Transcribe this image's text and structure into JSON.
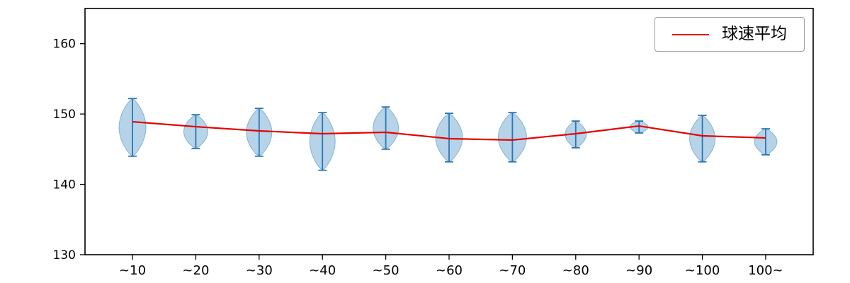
{
  "chart_data": {
    "type": "violin",
    "title": "",
    "xlabel": "",
    "ylabel": "",
    "categories": [
      "~10",
      "~20",
      "~30",
      "~40",
      "~50",
      "~60",
      "~70",
      "~80",
      "~90",
      "~100",
      "100~"
    ],
    "yticks": [
      130,
      140,
      150,
      160
    ],
    "ylim": [
      130,
      165
    ],
    "grid": false,
    "legend": {
      "position": "upper right",
      "entries": [
        "球速平均"
      ]
    },
    "series": [
      {
        "name": "球速平均",
        "type": "line",
        "color": "#e60000",
        "values": [
          148.9,
          148.2,
          147.6,
          147.2,
          147.4,
          146.5,
          146.3,
          147.2,
          148.3,
          146.9,
          146.6
        ]
      }
    ],
    "violins": [
      {
        "label": "~10",
        "min": 144.0,
        "max": 152.2,
        "mean": 148.9,
        "half_width": 19
      },
      {
        "label": "~20",
        "min": 145.1,
        "max": 149.9,
        "mean": 148.2,
        "half_width": 17
      },
      {
        "label": "~30",
        "min": 144.0,
        "max": 150.8,
        "mean": 147.6,
        "half_width": 18
      },
      {
        "label": "~40",
        "min": 142.0,
        "max": 150.2,
        "mean": 147.2,
        "half_width": 18
      },
      {
        "label": "~50",
        "min": 145.0,
        "max": 151.0,
        "mean": 147.4,
        "half_width": 18
      },
      {
        "label": "~60",
        "min": 143.2,
        "max": 150.1,
        "mean": 146.5,
        "half_width": 19
      },
      {
        "label": "~70",
        "min": 143.2,
        "max": 150.2,
        "mean": 146.3,
        "half_width": 20
      },
      {
        "label": "~80",
        "min": 145.2,
        "max": 149.0,
        "mean": 147.2,
        "half_width": 15
      },
      {
        "label": "~90",
        "min": 147.3,
        "max": 149.0,
        "mean": 148.3,
        "half_width": 13
      },
      {
        "label": "~100",
        "min": 143.2,
        "max": 149.8,
        "mean": 146.9,
        "half_width": 18
      },
      {
        "label": "100~",
        "min": 144.2,
        "max": 147.9,
        "mean": 146.6,
        "half_width": 16
      }
    ],
    "colors": {
      "violin_fill": "rgba(31,119,180,0.32)",
      "violin_edge": "rgba(31,119,180,0.45)",
      "whisker": "#2878b8",
      "mean_line": "#e60000",
      "axis": "#000000"
    }
  }
}
